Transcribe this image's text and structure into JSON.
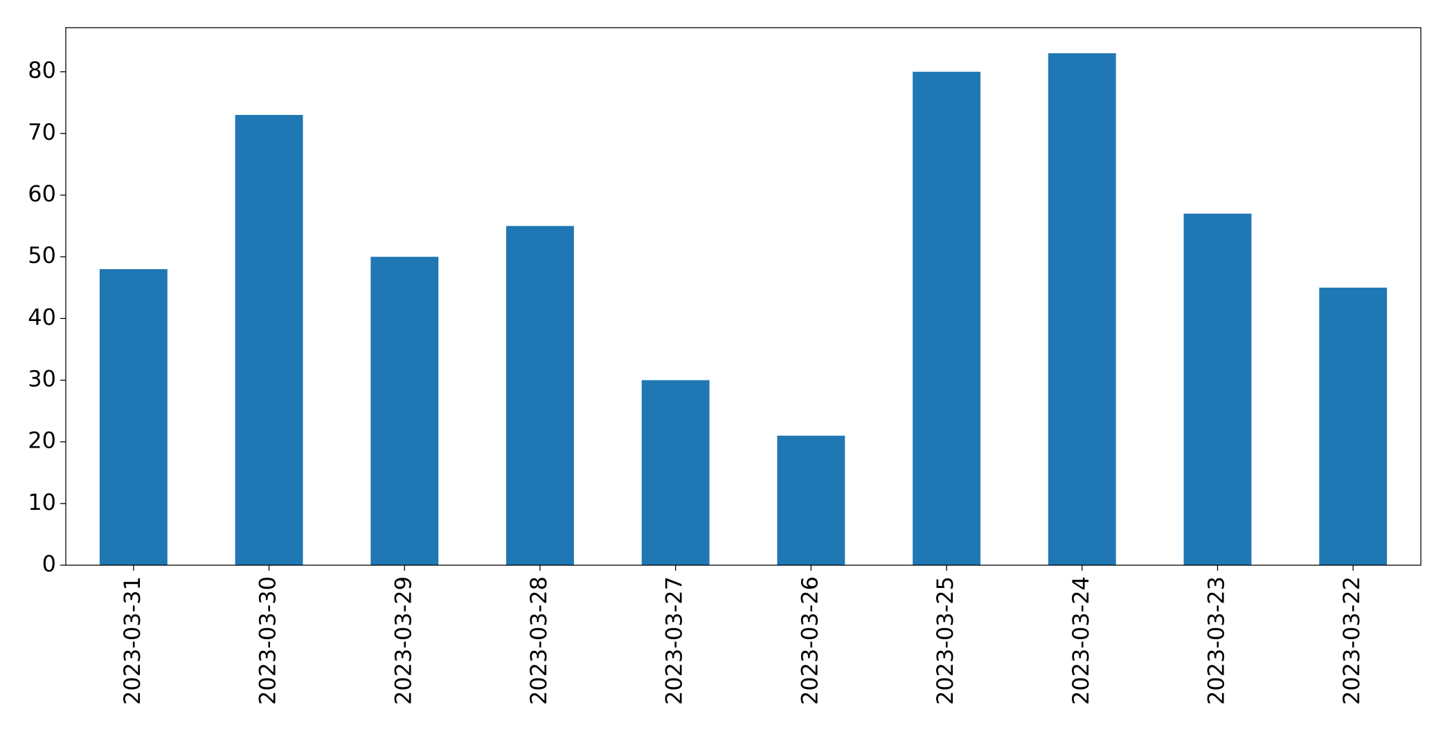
{
  "chart_data": {
    "type": "bar",
    "categories": [
      "2023-03-31",
      "2023-03-30",
      "2023-03-29",
      "2023-03-28",
      "2023-03-27",
      "2023-03-26",
      "2023-03-25",
      "2023-03-24",
      "2023-03-23",
      "2023-03-22"
    ],
    "values": [
      48,
      73,
      50,
      55,
      30,
      21,
      80,
      83,
      57,
      45
    ],
    "color": "#1f77b4",
    "ylim": [
      0,
      87.15
    ],
    "yticks": [
      0,
      10,
      20,
      30,
      40,
      50,
      60,
      70,
      80
    ],
    "grid": false
  }
}
